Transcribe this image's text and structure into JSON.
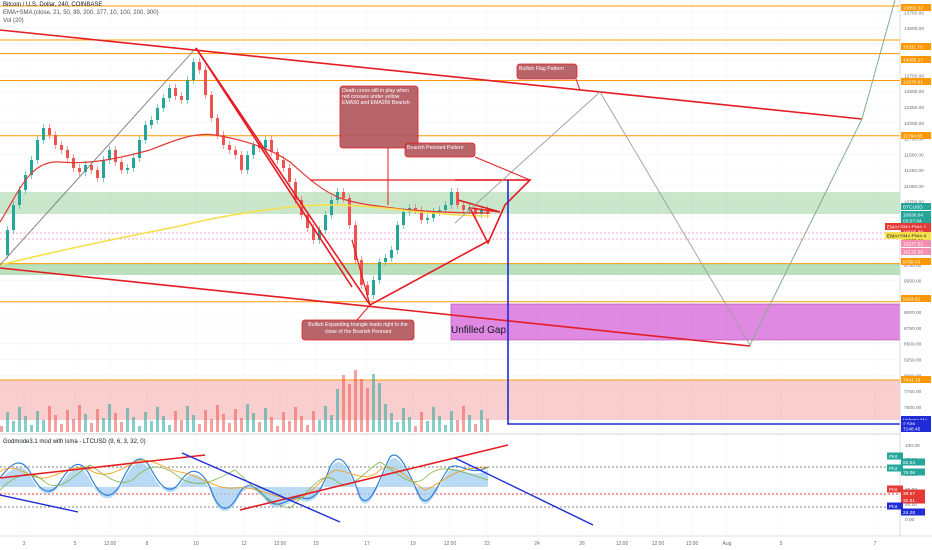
{
  "header": {
    "symbol_title": "Bitcoin / U.S. Dollar, 240, COINBASE",
    "indicator_ema_sma": "EMA+SMA (close, 21, 50, 89, 200, 377, 10, 100, 200, 300)",
    "indicator_vol": "Vol (20)"
  },
  "oscillator": {
    "title": "Godmode3.1 mod with lsma - LTCUSD (9, 6, 3, 32, 0)"
  },
  "colors": {
    "background": "#ffffff",
    "grid": "#eef0f3",
    "candle_up": "#26a69a",
    "candle_down": "#ef5350",
    "trendline": "#e51c23",
    "channel_line": "#e51c23",
    "ema_red": "#e53935",
    "ema_yellow": "#f5e04a",
    "support_zone": "#66bb6a",
    "gap_zone": "#d561d8",
    "blue_projection": "#1e2bd6",
    "orange_levels": "#ff9800",
    "annotation_bg": "#b0545a",
    "volume_zone": "#f4a6a6",
    "osc_blue": "#2f80d8",
    "osc_light": "#a6d1f2"
  },
  "annotations": {
    "death_cross": "Death cross still in play when red crosses under yellow EMA50 and EMA200 Bearish",
    "bearish_pennant": "Bearish Pennant Pattern",
    "bullish_flag": "Bullish Flag Pattern",
    "expanding_triangle": "Bullish Expanding triangle leads right to the close of the Bearish Pennant",
    "unfilled_gap": "Unfilled Gap"
  },
  "price_axis": {
    "ticks": [
      "13750.00",
      "13500.00",
      "13250.00",
      "13000.00",
      "12750.00",
      "12500.00",
      "12250.00",
      "12000.00",
      "11750.00",
      "11500.00",
      "11250.00",
      "11000.00",
      "10750.00",
      "10500.00",
      "10250.00",
      "10000.00",
      "9750.00",
      "9500.00",
      "9250.00",
      "9000.00",
      "8750.00",
      "8500.00",
      "8250.00",
      "8000.00",
      "7750.00",
      "7500.00",
      "7250.00"
    ],
    "labels": [
      {
        "text": "13850.32",
        "color": "#ff9800",
        "text_color": "#ffffff"
      },
      {
        "text": "13311.73",
        "color": "#ff9800",
        "text_color": "#ffffff"
      },
      {
        "text": "13095.17",
        "color": "#ff9800",
        "text_color": "#ffffff"
      },
      {
        "text": "12670.61",
        "color": "#ff9800",
        "text_color": "#ffffff"
      },
      {
        "text": "11794.55",
        "color": "#ff9800",
        "text_color": "#ffffff"
      },
      {
        "text": "BTCUSD",
        "color": "#26a69a",
        "text_color": "#ffffff"
      },
      {
        "text": "10636.04",
        "color": "#26a69a",
        "text_color": "#ffffff"
      },
      {
        "text": "03:57:04",
        "color": "#26a69a",
        "text_color": "#ffffff"
      },
      {
        "text": "EMA+SMA:EMA 2",
        "color": "#e53935",
        "text_color": "#ffffff"
      },
      {
        "text": "10595.89",
        "color": "#e53935",
        "text_color": "#ffffff"
      },
      {
        "text": "EMA+SMA:EMA 4",
        "color": "#f5e04a",
        "text_color": "#131722"
      },
      {
        "text": "10567.00",
        "color": "#f5e04a",
        "text_color": "#131722"
      },
      {
        "text": "10277.52",
        "color": "#f48fb1",
        "text_color": "#ffffff"
      },
      {
        "text": "10172.96",
        "color": "#f48fb1",
        "text_color": "#ffffff"
      },
      {
        "text": "9768.43",
        "color": "#ff9800",
        "text_color": "#ffffff"
      },
      {
        "text": "9164.61",
        "color": "#ff9800",
        "text_color": "#ffffff"
      },
      {
        "text": "7841.19",
        "color": "#ff9800",
        "text_color": "#ffffff"
      },
      {
        "text": "Volume MA",
        "color": "#1e2bd6",
        "text_color": "#ffffff"
      },
      {
        "text": "2.50K",
        "color": "#1e2bd6",
        "text_color": "#ffffff"
      },
      {
        "text": "7148.45",
        "color": "#1e2bd6",
        "text_color": "#ffffff"
      }
    ]
  },
  "osc_axis": {
    "ticks": [
      "100.00",
      "80.00",
      "60.00",
      "40.00",
      "20.00",
      "0.00"
    ],
    "labels": [
      {
        "text": "Plot",
        "color": "#26a69a"
      },
      {
        "text": "92.54",
        "color": "#26a69a"
      },
      {
        "text": "Plot",
        "color": "#26a69a"
      },
      {
        "text": "75.06",
        "color": "#26a69a"
      },
      {
        "text": "Plot",
        "color": "#e53935"
      },
      {
        "text": "39.57",
        "color": "#e53935"
      },
      {
        "text": "32.61",
        "color": "#e53935"
      },
      {
        "text": "Plot",
        "color": "#1e2bd6"
      },
      {
        "text": "24.28",
        "color": "#1e2bd6"
      }
    ]
  },
  "time_axis": [
    "3",
    "5",
    "12:00",
    "8",
    "10",
    "12",
    "12:00",
    "15",
    "17",
    "19",
    "12:00",
    "22",
    "24",
    "26",
    "12:00",
    "12:00",
    "12:00",
    "Aug",
    "5",
    "7"
  ],
  "chart_data": {
    "type": "line",
    "title": "Bitcoin / U.S. Dollar, 240, COINBASE",
    "xlabel": "",
    "ylabel": "",
    "ylim": [
      7148.45,
      13850.32
    ],
    "x": [
      "3",
      "5",
      "8",
      "10",
      "12",
      "15",
      "17",
      "19",
      "22",
      "24",
      "26",
      "Aug",
      "5",
      "7"
    ],
    "series": [],
    "horizontal_levels": [
      13850.32,
      13311.73,
      13095.17,
      12670.61,
      11794.55,
      10636.04,
      10595.89,
      10567.0,
      10277.52,
      10172.96,
      9768.43,
      9164.61,
      7841.19,
      7148.45
    ],
    "zones": [
      {
        "name": "support zone top",
        "from": 10480,
        "to": 10950
      },
      {
        "name": "support zone bottom",
        "from": 9600,
        "to": 9780
      },
      {
        "name": "Unfilled Gap",
        "from": 8550,
        "to": 9050
      },
      {
        "name": "volume zone",
        "from": 7350,
        "to": 7841.19
      }
    ],
    "oscillator_levels": [
      92.54,
      75.06,
      39.57,
      32.61,
      24.28
    ],
    "grid": true,
    "legend": "none"
  }
}
